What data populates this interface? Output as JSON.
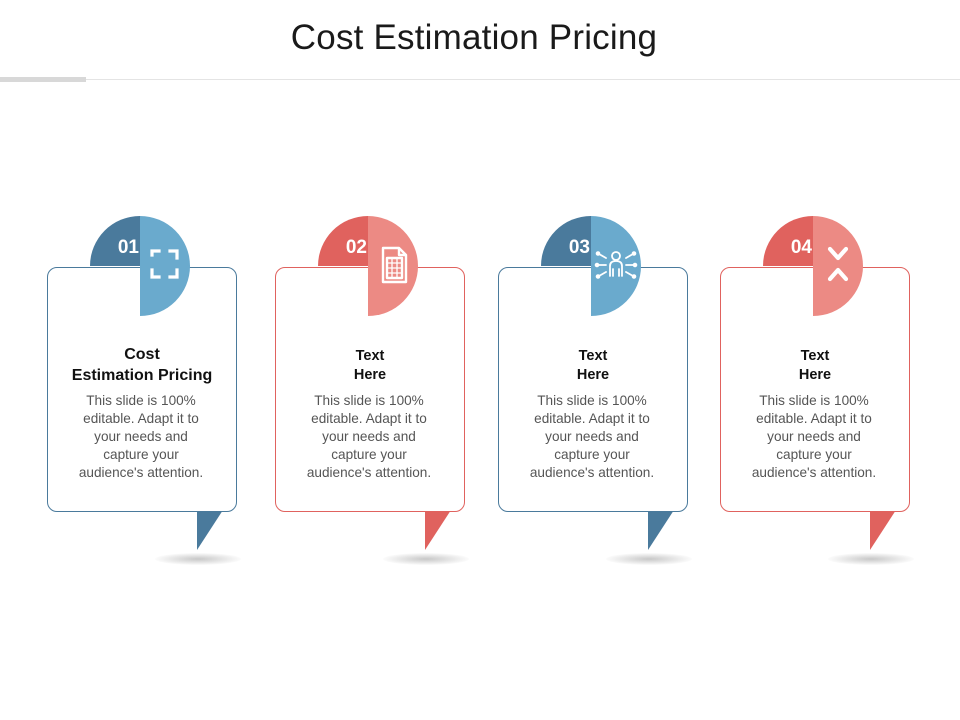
{
  "slide": {
    "title": "Cost Estimation Pricing"
  },
  "colors": {
    "blue_dark": "#4a7a9c",
    "blue_light": "#6aaacd",
    "red_dark": "#e0625e",
    "red_light": "#ec8a84"
  },
  "cards": [
    {
      "number": "01",
      "heading": "Cost\nEstimation Pricing",
      "body": "This slide is 100% editable. Adapt it to your needs and capture your audience's attention.",
      "icon": "scan-frame-icon",
      "theme": "blue"
    },
    {
      "number": "02",
      "heading": "Text\nHere",
      "body": "This slide is 100% editable. Adapt it to your needs and capture your audience's attention.",
      "icon": "calculator-document-icon",
      "theme": "red"
    },
    {
      "number": "03",
      "heading": "Text\nHere",
      "body": "This slide is 100% editable. Adapt it to your needs and capture your audience's attention.",
      "icon": "person-network-icon",
      "theme": "blue"
    },
    {
      "number": "04",
      "heading": "Text\nHere",
      "body": "This slide is 100% editable. Adapt it to your needs and capture your audience's attention.",
      "icon": "collapse-chevrons-icon",
      "theme": "red"
    }
  ]
}
